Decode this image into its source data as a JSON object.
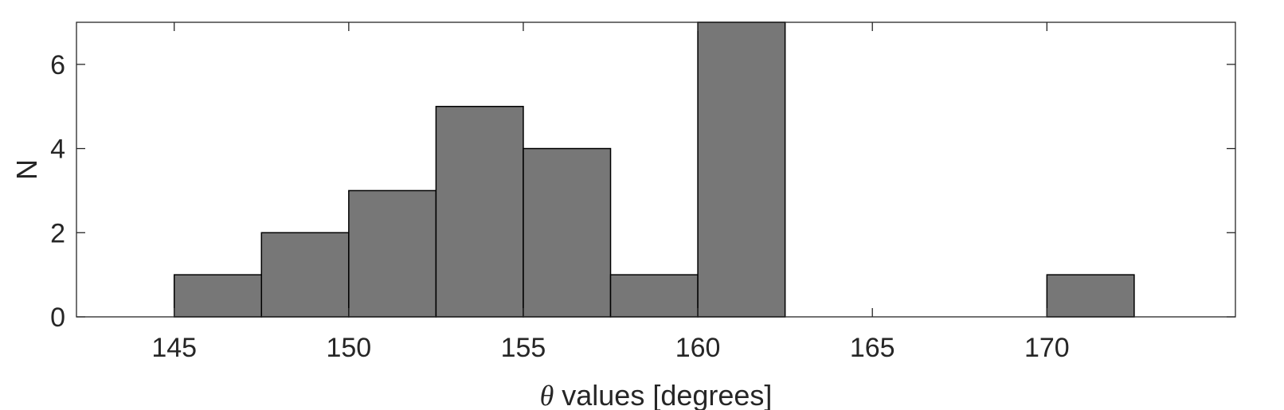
{
  "chart_data": {
    "type": "bar",
    "subtype": "histogram",
    "bins": [
      {
        "x0": 145.0,
        "x1": 147.5,
        "count": 1
      },
      {
        "x0": 147.5,
        "x1": 150.0,
        "count": 2
      },
      {
        "x0": 150.0,
        "x1": 152.5,
        "count": 3
      },
      {
        "x0": 152.5,
        "x1": 155.0,
        "count": 5
      },
      {
        "x0": 155.0,
        "x1": 157.5,
        "count": 4
      },
      {
        "x0": 157.5,
        "x1": 160.0,
        "count": 1
      },
      {
        "x0": 160.0,
        "x1": 162.5,
        "count": 7
      },
      {
        "x0": 162.5,
        "x1": 165.0,
        "count": 0
      },
      {
        "x0": 165.0,
        "x1": 167.5,
        "count": 0
      },
      {
        "x0": 167.5,
        "x1": 170.0,
        "count": 0
      },
      {
        "x0": 170.0,
        "x1": 172.5,
        "count": 1
      }
    ],
    "xlabel_symbol": "θ",
    "xlabel_text": " values [degrees]",
    "ylabel": "N",
    "xlim": [
      142.2,
      175.4
    ],
    "ylim": [
      0,
      7
    ],
    "xticks": [
      145,
      150,
      155,
      160,
      165,
      170
    ],
    "yticks": [
      0,
      2,
      4,
      6
    ],
    "grid": false,
    "bar_color": "#777777",
    "edge_color": "#000000"
  }
}
